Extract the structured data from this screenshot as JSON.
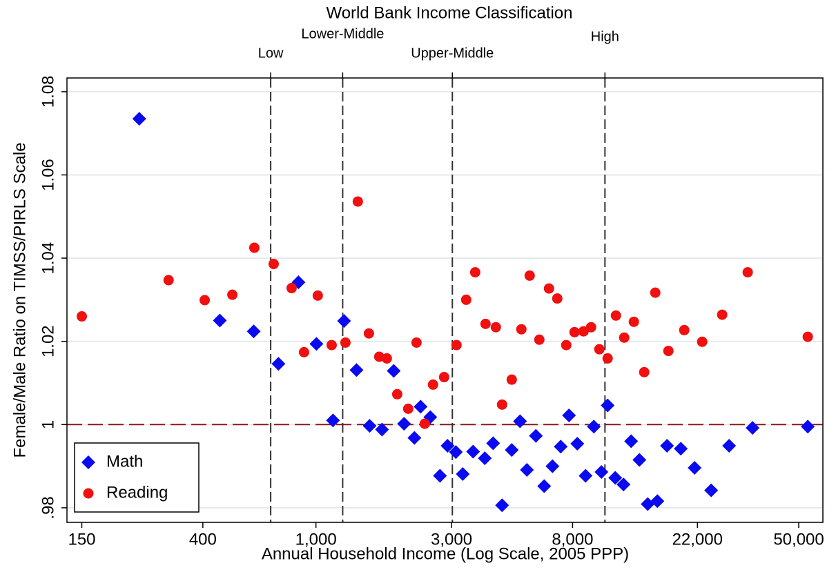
{
  "chart_data": {
    "type": "scatter",
    "top_axis_title": "World Bank Income Classification",
    "xlabel": "Annual Household Income (Log Scale, 2005 PPP)",
    "ylabel": "Female/Male Ratio on TIMSS/PIRLS Scale",
    "xscale": "log",
    "xlim": [
      133,
      60800
    ],
    "ylim": [
      0.9765,
      1.0833
    ],
    "xticks": [
      150,
      400,
      {
        "value": 1000,
        "label": "1,000"
      },
      {
        "value": 3000,
        "label": "3,000"
      },
      {
        "value": 8000,
        "label": "8,000"
      },
      {
        "value": 22000,
        "label": "22,000"
      },
      {
        "value": 50000,
        "label": "50,000"
      }
    ],
    "yticks": [
      {
        "value": 0.98,
        "label": ".98"
      },
      1,
      1.02,
      1.04,
      1.06,
      1.08
    ],
    "grid": true,
    "legend": "lower left",
    "income_thresholds": [
      {
        "value": 693,
        "label": "Low"
      },
      {
        "value": 1242,
        "label": "Lower-Middle"
      },
      {
        "value": 3020,
        "label": "Upper-Middle"
      },
      {
        "value": 10400,
        "label": "High"
      }
    ],
    "reference_line": 1,
    "series": [
      {
        "name": "Math",
        "color": "#0a0af0",
        "marker": "diamond",
        "x": [
          239,
          459,
          604,
          738,
          868,
          1004,
          1148,
          1256,
          1389,
          1545,
          1708,
          1878,
          2042,
          2221,
          2335,
          2526,
          2732,
          2905,
          3107,
          3286,
          3573,
          3929,
          4202,
          4519,
          4887,
          5226,
          5526,
          5943,
          6356,
          6797,
          7268,
          7772,
          8313,
          8888,
          9504,
          10106,
          10628,
          11302,
          12085,
          12856,
          13748,
          14705,
          15902,
          17196,
          19228,
          21500,
          24591,
          28436,
          34397,
          53794
        ],
        "values": [
          1.0735,
          1.025,
          1.0224,
          1.0146,
          1.0342,
          1.0194,
          1.001,
          1.0249,
          1.0131,
          0.9997,
          0.9988,
          1.0129,
          1.0002,
          0.9968,
          1.0043,
          1.0018,
          0.9877,
          0.9949,
          0.9934,
          0.9881,
          0.9935,
          0.9919,
          0.9955,
          0.9806,
          0.9939,
          1.0008,
          0.9891,
          0.9973,
          0.9852,
          0.99,
          0.9947,
          1.0022,
          0.9954,
          0.9877,
          0.9995,
          0.9886,
          1.0046,
          0.9872,
          0.9856,
          0.996,
          0.9915,
          0.9809,
          0.9816,
          0.9949,
          0.9942,
          0.9896,
          0.9842,
          0.9949,
          0.9992,
          0.9995
        ]
      },
      {
        "name": "Reading",
        "color": "#f01010",
        "marker": "circle",
        "x": [
          150,
          303,
          406,
          508,
          607,
          710,
          821,
          908,
          1015,
          1136,
          1270,
          1404,
          1536,
          1670,
          1776,
          1932,
          2112,
          2259,
          2415,
          2583,
          2825,
          3124,
          3379,
          3634,
          3951,
          4297,
          4519,
          4887,
          5284,
          5651,
          6111,
          6609,
          7068,
          7601,
          8128,
          8742,
          9295,
          9940,
          10628,
          11367,
          12155,
          13144,
          14296,
          15636,
          17388,
          19773,
          22870,
          26888,
          33068,
          53794
        ],
        "values": [
          1.026,
          1.0347,
          1.0299,
          1.0312,
          1.0425,
          1.0386,
          1.0328,
          1.0174,
          1.031,
          1.0191,
          1.0197,
          1.0536,
          1.0219,
          1.0163,
          1.0159,
          1.0073,
          1.0038,
          1.0197,
          1.0002,
          1.0096,
          1.0114,
          1.0191,
          1.03,
          1.0366,
          1.0242,
          1.0234,
          1.0048,
          1.0108,
          1.0229,
          1.0358,
          1.0204,
          1.0327,
          1.0303,
          1.0191,
          1.0222,
          1.0224,
          1.0234,
          1.0181,
          1.0159,
          1.0262,
          1.0209,
          1.0247,
          1.0126,
          1.0317,
          1.0177,
          1.0227,
          1.0199,
          1.0264,
          1.0366,
          1.0211
        ]
      }
    ]
  }
}
